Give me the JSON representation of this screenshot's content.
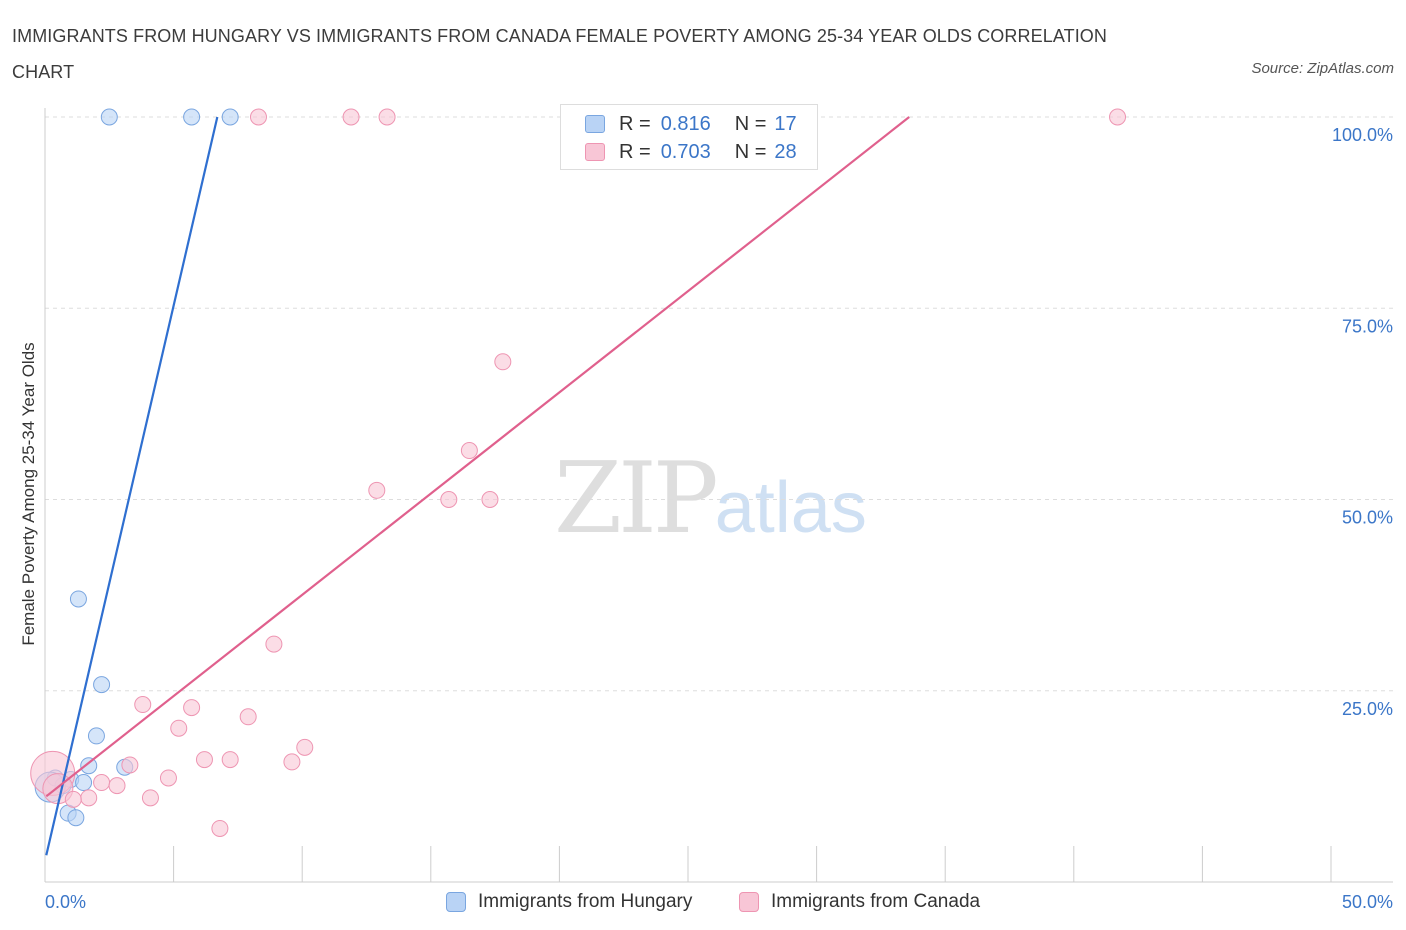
{
  "title": "IMMIGRANTS FROM HUNGARY VS IMMIGRANTS FROM CANADA FEMALE POVERTY AMONG 25-34 YEAR OLDS CORRELATION CHART",
  "source": "Source: ZipAtlas.com",
  "watermark": {
    "zip": "ZIP",
    "atlas": "atlas"
  },
  "colors": {
    "hungary_fill": "#b9d3f5",
    "hungary_stroke": "#7aa6e0",
    "hungary_line": "#2f6fd0",
    "canada_fill": "#f8c6d6",
    "canada_stroke": "#ee95b2",
    "canada_line": "#e0608d",
    "axis_label": "#3b76c8",
    "grid": "#dddddd"
  },
  "legend": {
    "rows": [
      {
        "r_label": "R =",
        "r_value": "0.816",
        "n_label": "N =",
        "n_value": "17"
      },
      {
        "r_label": "R =",
        "r_value": "0.703",
        "n_label": "N =",
        "n_value": "28"
      }
    ]
  },
  "bottom_legend": [
    "Immigrants from Hungary",
    "Immigrants from Canada"
  ],
  "chart_data": {
    "type": "scatter",
    "title": "IMMIGRANTS FROM HUNGARY VS IMMIGRANTS FROM CANADA FEMALE POVERTY AMONG 25-34 YEAR OLDS CORRELATION CHART",
    "xlabel": "",
    "ylabel": "Female Poverty Among 25-34 Year Olds",
    "xlim": [
      0,
      50
    ],
    "ylim": [
      0,
      100
    ],
    "x_tick_labels": [
      {
        "value": 0,
        "label": "0.0%"
      },
      {
        "value": 50,
        "label": "50.0%"
      }
    ],
    "y_tick_labels": [
      {
        "value": 25,
        "label": "25.0%"
      },
      {
        "value": 50,
        "label": "50.0%"
      },
      {
        "value": 75,
        "label": "75.0%"
      },
      {
        "value": 100,
        "label": "100.0%"
      }
    ],
    "x_minor_ticks": [
      0,
      5,
      10,
      15,
      20,
      25,
      30,
      35,
      40,
      45,
      50
    ],
    "series": [
      {
        "name": "Immigrants from Hungary",
        "R": 0.816,
        "N": 17,
        "points": [
          {
            "x": 2.5,
            "y": 100,
            "s": 1
          },
          {
            "x": 5.7,
            "y": 100,
            "s": 1
          },
          {
            "x": 7.2,
            "y": 100,
            "s": 1
          },
          {
            "x": 1.3,
            "y": 37,
            "s": 1
          },
          {
            "x": 2.2,
            "y": 25.8,
            "s": 1
          },
          {
            "x": 2.0,
            "y": 19.1,
            "s": 1
          },
          {
            "x": 1.7,
            "y": 15.2,
            "s": 1
          },
          {
            "x": 3.1,
            "y": 15.0,
            "s": 1
          },
          {
            "x": 0.4,
            "y": 13.6,
            "s": 1
          },
          {
            "x": 1.0,
            "y": 13.4,
            "s": 1
          },
          {
            "x": 1.5,
            "y": 13.0,
            "s": 1
          },
          {
            "x": 0.7,
            "y": 12.6,
            "s": 1
          },
          {
            "x": 0.2,
            "y": 12.4,
            "s": 2
          },
          {
            "x": 0.9,
            "y": 9.0,
            "s": 1
          },
          {
            "x": 1.2,
            "y": 8.4,
            "s": 1
          }
        ],
        "trend": {
          "x1": 0.05,
          "y1": 3.5,
          "x2": 6.7,
          "y2": 100
        }
      },
      {
        "name": "Immigrants from Canada",
        "R": 0.703,
        "N": 28,
        "points": [
          {
            "x": 8.3,
            "y": 100,
            "s": 1
          },
          {
            "x": 11.9,
            "y": 100,
            "s": 1
          },
          {
            "x": 13.3,
            "y": 100,
            "s": 1
          },
          {
            "x": 41.7,
            "y": 100,
            "s": 1
          },
          {
            "x": 17.8,
            "y": 68,
            "s": 1
          },
          {
            "x": 16.5,
            "y": 56.4,
            "s": 1
          },
          {
            "x": 12.9,
            "y": 51.2,
            "s": 1
          },
          {
            "x": 15.7,
            "y": 50.0,
            "s": 1
          },
          {
            "x": 17.3,
            "y": 50.0,
            "s": 1
          },
          {
            "x": 8.9,
            "y": 31.1,
            "s": 1
          },
          {
            "x": 3.8,
            "y": 23.2,
            "s": 1
          },
          {
            "x": 5.7,
            "y": 22.8,
            "s": 1
          },
          {
            "x": 7.9,
            "y": 21.6,
            "s": 1
          },
          {
            "x": 5.2,
            "y": 20.1,
            "s": 1
          },
          {
            "x": 10.1,
            "y": 17.6,
            "s": 1
          },
          {
            "x": 6.2,
            "y": 16.0,
            "s": 1
          },
          {
            "x": 7.2,
            "y": 16.0,
            "s": 1
          },
          {
            "x": 9.6,
            "y": 15.7,
            "s": 1
          },
          {
            "x": 3.3,
            "y": 15.3,
            "s": 1
          },
          {
            "x": 4.8,
            "y": 13.6,
            "s": 1
          },
          {
            "x": 2.2,
            "y": 13.0,
            "s": 1
          },
          {
            "x": 2.8,
            "y": 12.6,
            "s": 1
          },
          {
            "x": 0.3,
            "y": 14.2,
            "s": 3
          },
          {
            "x": 0.5,
            "y": 12.2,
            "s": 2
          },
          {
            "x": 1.7,
            "y": 11.0,
            "s": 1
          },
          {
            "x": 4.1,
            "y": 11.0,
            "s": 1
          },
          {
            "x": 1.1,
            "y": 10.8,
            "s": 1
          },
          {
            "x": 6.8,
            "y": 7.0,
            "s": 1
          }
        ],
        "trend": {
          "x1": 0.05,
          "y1": 11.2,
          "x2": 33.6,
          "y2": 100
        }
      }
    ]
  }
}
